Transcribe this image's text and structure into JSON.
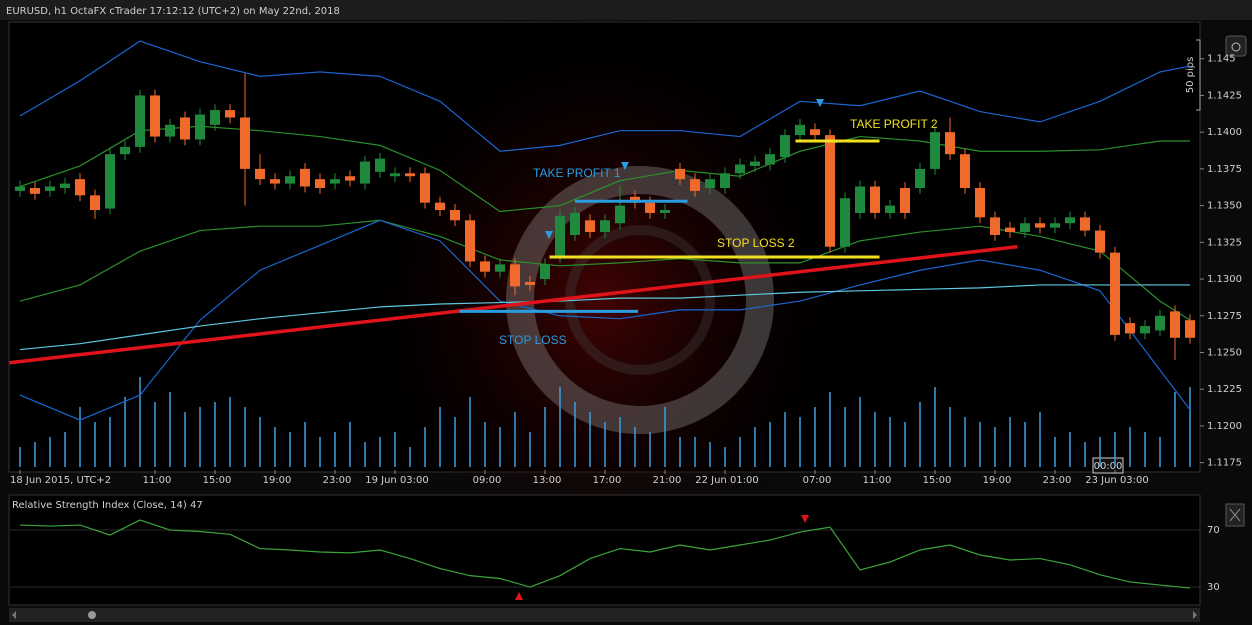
{
  "chart_data": [
    {
      "type": "candlestick",
      "title": "EURUSD, h1 OctaFX cTrader 17:12:12 (UTC+2) on May 22nd, 2018",
      "categories": [
        "18 Jun 2015, UTC+2",
        null,
        null,
        null,
        null,
        null,
        null,
        null,
        null,
        "11:00",
        null,
        null,
        null,
        "15:00",
        null,
        null,
        null,
        "19:00",
        null,
        null,
        null,
        "23:00",
        null,
        null,
        null,
        "19 Jun 03:00",
        null,
        null,
        null,
        null,
        null,
        "09:00",
        null,
        null,
        null,
        "13:00",
        null,
        null,
        null,
        "17:00",
        null,
        null,
        null,
        "21:00",
        null,
        null,
        null,
        "22 Jun 01:00",
        null,
        null,
        null,
        null,
        null,
        "07:00",
        null,
        null,
        null,
        "11:00",
        null,
        null,
        null,
        "15:00",
        null,
        null,
        null,
        "19:00",
        null,
        null,
        null,
        "23:00",
        null,
        null,
        null,
        "23 Jun 03:00",
        null,
        null,
        null,
        null,
        null
      ],
      "open": [
        1.136,
        1.1362,
        1.136,
        1.1362,
        1.1368,
        1.1357,
        1.1348,
        1.1385,
        1.139,
        1.1425,
        1.1397,
        1.141,
        1.1395,
        1.1405,
        1.1415,
        1.141,
        1.1375,
        1.1368,
        1.1365,
        1.1375,
        1.1368,
        1.1365,
        1.137,
        1.1365,
        1.1373,
        1.137,
        1.1372,
        1.1372,
        1.1352,
        1.1347,
        1.134,
        1.1312,
        1.1305,
        1.131,
        1.1298,
        1.13,
        1.1315,
        1.133,
        1.134,
        1.1332,
        1.1338,
        1.1356,
        1.1352,
        1.1345,
        1.1375,
        1.1368,
        1.1362,
        1.1362,
        1.1372,
        1.1377,
        1.1378,
        1.1383,
        1.1398,
        1.1402,
        1.1398,
        1.1322,
        1.1345,
        1.1363,
        1.1345,
        1.1362,
        1.1362,
        1.1375,
        1.14,
        1.1385,
        1.1362,
        1.1342,
        1.1335,
        1.1332,
        1.1338,
        1.1335,
        1.1338,
        1.1342,
        1.1333,
        1.1318,
        1.127,
        1.1263,
        1.1265,
        1.1278,
        1.1272
      ],
      "high": [
        1.1367,
        1.1366,
        1.1367,
        1.1369,
        1.1372,
        1.1361,
        1.1389,
        1.1394,
        1.1429,
        1.1429,
        1.1409,
        1.1414,
        1.1416,
        1.1419,
        1.1419,
        1.144,
        1.1385,
        1.1372,
        1.1374,
        1.1379,
        1.1372,
        1.1372,
        1.1374,
        1.1384,
        1.1386,
        1.1376,
        1.1376,
        1.1376,
        1.1356,
        1.1351,
        1.1344,
        1.1316,
        1.1314,
        1.1314,
        1.1302,
        1.1314,
        1.1347,
        1.1349,
        1.1344,
        1.1344,
        1.1364,
        1.136,
        1.1356,
        1.1351,
        1.1379,
        1.1372,
        1.1372,
        1.1376,
        1.1382,
        1.1384,
        1.1389,
        1.1402,
        1.1409,
        1.1406,
        1.1402,
        1.1359,
        1.1367,
        1.1367,
        1.1354,
        1.1366,
        1.1379,
        1.1404,
        1.141,
        1.1389,
        1.1366,
        1.1346,
        1.1339,
        1.1342,
        1.1342,
        1.1342,
        1.1346,
        1.1346,
        1.1337,
        1.1322,
        1.1274,
        1.1272,
        1.1279,
        1.1282,
        1.1276
      ],
      "low": [
        1.1356,
        1.1354,
        1.1356,
        1.1358,
        1.1353,
        1.1341,
        1.1344,
        1.1381,
        1.1386,
        1.1393,
        1.1393,
        1.1391,
        1.1391,
        1.1401,
        1.1406,
        1.135,
        1.1364,
        1.1361,
        1.1361,
        1.1359,
        1.1358,
        1.1361,
        1.1363,
        1.1361,
        1.1369,
        1.1366,
        1.1366,
        1.1348,
        1.1343,
        1.1336,
        1.1308,
        1.1301,
        1.1301,
        1.1289,
        1.1292,
        1.1296,
        1.1311,
        1.1326,
        1.1328,
        1.1328,
        1.1334,
        1.1348,
        1.1341,
        1.1341,
        1.1364,
        1.1356,
        1.1358,
        1.1358,
        1.1368,
        1.1373,
        1.1374,
        1.1379,
        1.1394,
        1.1394,
        1.1318,
        1.1318,
        1.1341,
        1.1341,
        1.1341,
        1.1341,
        1.1358,
        1.1371,
        1.1381,
        1.1358,
        1.1338,
        1.1326,
        1.1328,
        1.1328,
        1.1331,
        1.1331,
        1.1334,
        1.1329,
        1.1314,
        1.1258,
        1.1259,
        1.1259,
        1.1261,
        1.1245,
        1.1256
      ],
      "close": [
        1.1363,
        1.1358,
        1.1363,
        1.1365,
        1.1357,
        1.1347,
        1.1385,
        1.139,
        1.1425,
        1.1397,
        1.1405,
        1.1395,
        1.1412,
        1.1415,
        1.141,
        1.1375,
        1.1368,
        1.1365,
        1.137,
        1.1363,
        1.1362,
        1.1368,
        1.1367,
        1.138,
        1.1382,
        1.1372,
        1.137,
        1.1352,
        1.1347,
        1.134,
        1.1312,
        1.1305,
        1.131,
        1.1295,
        1.1296,
        1.131,
        1.1343,
        1.1345,
        1.1332,
        1.134,
        1.135,
        1.1352,
        1.1345,
        1.1347,
        1.1368,
        1.136,
        1.1368,
        1.1372,
        1.1378,
        1.138,
        1.1385,
        1.1398,
        1.1405,
        1.1398,
        1.1322,
        1.1355,
        1.1363,
        1.1345,
        1.135,
        1.1345,
        1.1375,
        1.14,
        1.1385,
        1.1362,
        1.1342,
        1.133,
        1.1332,
        1.1338,
        1.1335,
        1.1338,
        1.1342,
        1.1333,
        1.1318,
        1.1262,
        1.1263,
        1.1268,
        1.1275,
        1.126,
        1.126
      ],
      "up_color": "#1f8a3d",
      "down_color": "#f06a2c",
      "volume": [
        20,
        25,
        30,
        35,
        60,
        45,
        50,
        70,
        90,
        65,
        75,
        55,
        60,
        65,
        70,
        60,
        50,
        40,
        35,
        45,
        30,
        35,
        45,
        25,
        30,
        35,
        20,
        40,
        60,
        50,
        70,
        45,
        40,
        55,
        35,
        60,
        80,
        65,
        55,
        45,
        50,
        40,
        35,
        60,
        30,
        30,
        25,
        20,
        30,
        40,
        45,
        55,
        50,
        60,
        75,
        60,
        70,
        55,
        50,
        45,
        65,
        80,
        60,
        50,
        45,
        40,
        50,
        45,
        55,
        30,
        35,
        25,
        30,
        35,
        40,
        35,
        30,
        75,
        80
      ],
      "volume_color": "#3aa0e0",
      "ylim": [
        1.117,
        1.1475
      ],
      "yticks": [
        {
          "value": 1.1175,
          "label": "1.1175"
        },
        {
          "value": 1.12,
          "label": "1.1200"
        },
        {
          "value": 1.1225,
          "label": "1.1225"
        },
        {
          "value": 1.125,
          "label": "1.1250"
        },
        {
          "value": 1.1275,
          "label": "1.1275"
        },
        {
          "value": 1.13,
          "label": "1.1300"
        },
        {
          "value": 1.1325,
          "label": "1.1325"
        },
        {
          "value": 1.135,
          "label": "1.1350"
        },
        {
          "value": 1.1375,
          "label": "1.1375"
        },
        {
          "value": 1.14,
          "label": "1.1400"
        },
        {
          "value": 1.1425,
          "label": "1.1425"
        },
        {
          "value": 1.145,
          "label": "1.145"
        }
      ],
      "series": [
        {
          "color": "#1a66d0",
          "x": [
            0,
            4,
            8,
            12,
            16,
            20,
            24,
            28,
            32,
            36,
            40,
            44,
            48,
            52,
            56,
            60,
            64,
            68,
            72,
            76,
            78
          ],
          "values": [
            1.1411,
            1.1435,
            1.1462,
            1.1448,
            1.1438,
            1.1441,
            1.1438,
            1.1421,
            1.1387,
            1.1391,
            1.1401,
            1.1401,
            1.1397,
            1.1421,
            1.1418,
            1.1428,
            1.1414,
            1.1407,
            1.1421,
            1.1441,
            1.1445
          ]
        },
        {
          "color": "#2b8f2b",
          "x": [
            0,
            4,
            8,
            12,
            16,
            20,
            24,
            28,
            32,
            36,
            40,
            44,
            48,
            52,
            56,
            60,
            64,
            68,
            72,
            76,
            78
          ],
          "values": [
            1.1363,
            1.1377,
            1.1401,
            1.1404,
            1.1401,
            1.1397,
            1.1391,
            1.1374,
            1.1346,
            1.135,
            1.1367,
            1.1374,
            1.137,
            1.1387,
            1.1397,
            1.1394,
            1.1387,
            1.1387,
            1.1388,
            1.1394,
            1.1394
          ]
        },
        {
          "color": "#2b8f2b",
          "x": [
            0,
            4,
            8,
            12,
            16,
            20,
            24,
            28,
            32,
            36,
            40,
            44,
            48,
            52,
            56,
            60,
            64,
            68,
            72,
            76,
            78
          ],
          "values": [
            1.1285,
            1.1296,
            1.1319,
            1.1333,
            1.1336,
            1.1336,
            1.134,
            1.1329,
            1.1313,
            1.1309,
            1.1311,
            1.1314,
            1.1311,
            1.1311,
            1.1326,
            1.1332,
            1.1336,
            1.1329,
            1.1319,
            1.1285,
            1.1272
          ]
        },
        {
          "color": "#1a66d0",
          "x": [
            0,
            4,
            8,
            12,
            16,
            20,
            24,
            28,
            32,
            36,
            40,
            44,
            48,
            52,
            56,
            60,
            64,
            68,
            72,
            76,
            78
          ],
          "values": [
            1.1221,
            1.1204,
            1.1221,
            1.1272,
            1.1306,
            1.1323,
            1.134,
            1.1326,
            1.1285,
            1.1275,
            1.1273,
            1.1279,
            1.1279,
            1.1285,
            1.1296,
            1.1306,
            1.1313,
            1.1306,
            1.1292,
            1.1238,
            1.1211
          ]
        },
        {
          "color": "#5ec8e0",
          "x": [
            0,
            4,
            8,
            12,
            16,
            20,
            24,
            28,
            32,
            36,
            40,
            44,
            48,
            52,
            56,
            60,
            64,
            68,
            72,
            76,
            78
          ],
          "values": [
            1.1252,
            1.1256,
            1.1262,
            1.1268,
            1.1273,
            1.1277,
            1.1281,
            1.1283,
            1.1284,
            1.1285,
            1.1287,
            1.1287,
            1.1289,
            1.1291,
            1.1292,
            1.1293,
            1.1294,
            1.1296,
            1.1296,
            1.1296,
            1.1296
          ]
        }
      ],
      "trendline": {
        "color": "#e0131b",
        "x": [
          -0.7,
          66.5
        ],
        "values": [
          1.1243,
          1.1322
        ]
      },
      "annotations": [
        {
          "text": "TAKE PROFIT 1",
          "color": "#2a9de0",
          "value": 1.1353,
          "from": 37,
          "to": 44.5
        },
        {
          "text": "STOP LOSS",
          "color": "#2a9de0",
          "value": 1.1278,
          "from": 29.3,
          "to": 41.2
        },
        {
          "text": "TAKE PROFIT 2",
          "color": "#f0e020",
          "value": 1.1394,
          "from": 51.7,
          "to": 57.3
        },
        {
          "text": "STOP LOSS 2",
          "color": "#f0e020",
          "value": 1.1315,
          "from": 35.3,
          "to": 57.3
        }
      ]
    },
    {
      "type": "line",
      "title": "Relative Strength Index (Close, 14) 47",
      "color": "#3ba53b",
      "x": [
        0,
        2,
        4,
        6,
        8,
        10,
        12,
        14,
        16,
        18,
        20,
        22,
        24,
        26,
        28,
        30,
        32,
        34,
        36,
        38,
        40,
        42,
        44,
        46,
        48,
        50,
        52,
        54,
        56,
        58,
        60,
        62,
        64,
        66,
        68,
        70,
        72,
        74,
        76,
        78
      ],
      "values": [
        73.5,
        72.8,
        73.5,
        66.5,
        77,
        70,
        69,
        67,
        57,
        56,
        54.6,
        54,
        56,
        50,
        43,
        38,
        36,
        30,
        38,
        50,
        57,
        54.6,
        59.5,
        56,
        59.5,
        63,
        68.6,
        72,
        42,
        47.5,
        56,
        59.5,
        52.5,
        49,
        50,
        45.6,
        38.6,
        33.6,
        31.4,
        29.3
      ],
      "ylim": [
        17.4,
        93.2
      ],
      "yticks": [
        30,
        70
      ],
      "grid": true
    }
  ],
  "ui": {
    "pips_label": "50 pips",
    "cursor_time": "00:00"
  }
}
